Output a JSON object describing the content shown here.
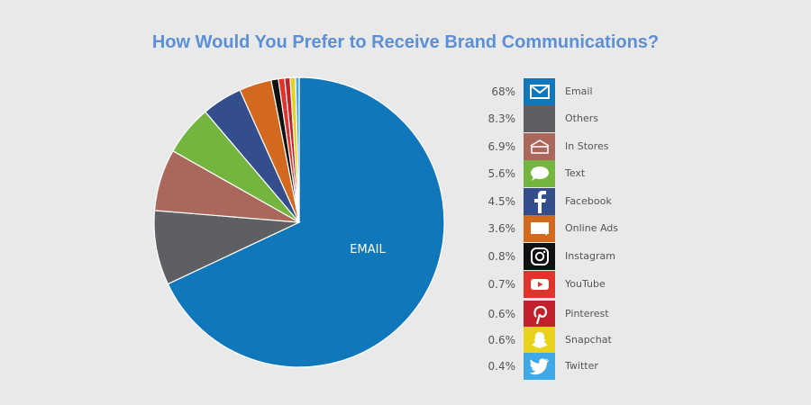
{
  "title": "How Would You Prefer to Receive Brand Communications?",
  "pie_center_label": "EMAIL",
  "chart_data": {
    "type": "pie",
    "title": "How Would You Prefer to Receive Brand Communications?",
    "slices": [
      {
        "label": "Email",
        "value": 68,
        "display": "68%",
        "color": "#1177bb",
        "icon": "envelope-icon"
      },
      {
        "label": "Others",
        "value": 8.3,
        "display": "8.3%",
        "color": "#5e5f63",
        "icon": "blank-tile-icon"
      },
      {
        "label": "In Stores",
        "value": 6.9,
        "display": "6.9%",
        "color": "#a9685b",
        "icon": "storefront-icon"
      },
      {
        "label": "Text",
        "value": 5.6,
        "display": "5.6%",
        "color": "#73b53e",
        "icon": "chat-bubble-icon"
      },
      {
        "label": "Facebook",
        "value": 4.5,
        "display": "4.5%",
        "color": "#344d8d",
        "icon": "facebook-icon"
      },
      {
        "label": "Online Ads",
        "value": 3.6,
        "display": "3.6%",
        "color": "#d2691f",
        "icon": "ad-window-icon"
      },
      {
        "label": "Instagram",
        "value": 0.8,
        "display": "0.8%",
        "color": "#111111",
        "icon": "instagram-icon"
      },
      {
        "label": "YouTube",
        "value": 0.7,
        "display": "0.7%",
        "color": "#e0332c",
        "icon": "youtube-icon"
      },
      {
        "label": "Pinterest",
        "value": 0.6,
        "display": "0.6%",
        "color": "#c2202b",
        "icon": "pinterest-icon"
      },
      {
        "label": "Snapchat",
        "value": 0.6,
        "display": "0.6%",
        "color": "#e8d21b",
        "icon": "snapchat-icon"
      },
      {
        "label": "Twitter",
        "value": 0.4,
        "display": "0.4%",
        "color": "#3fa9e8",
        "icon": "twitter-icon"
      }
    ]
  }
}
